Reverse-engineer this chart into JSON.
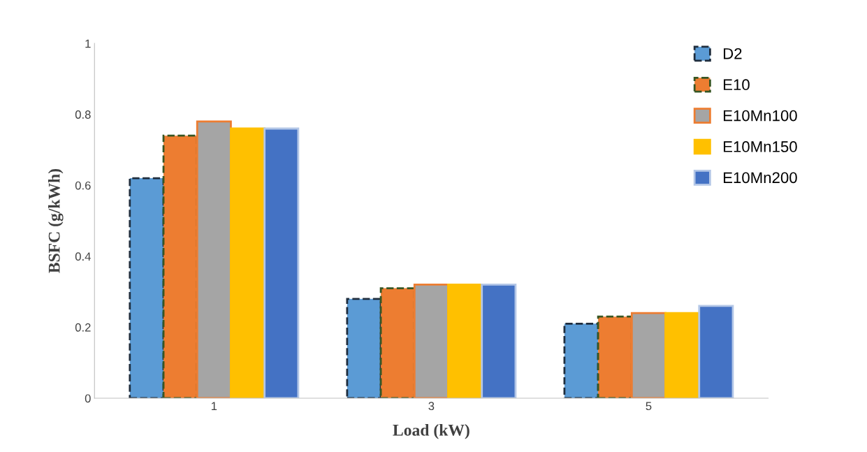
{
  "chart_data": {
    "type": "bar",
    "xlabel": "Load (kW)",
    "ylabel": "BSFC (g/kWh)",
    "categories": [
      "1",
      "3",
      "5"
    ],
    "series": [
      {
        "name": "D2",
        "color": "#5b9bd5",
        "values": [
          0.62,
          0.28,
          0.21
        ]
      },
      {
        "name": "E10",
        "color": "#ed7d31",
        "values": [
          0.74,
          0.31,
          0.23
        ]
      },
      {
        "name": "E10Mn100",
        "color": "#a5a5a5",
        "values": [
          0.78,
          0.32,
          0.24
        ]
      },
      {
        "name": "E10Mn150",
        "color": "#ffc000",
        "values": [
          0.76,
          0.32,
          0.24
        ]
      },
      {
        "name": "E10Mn200",
        "color": "#4472c4",
        "values": [
          0.76,
          0.32,
          0.26
        ]
      }
    ],
    "ylim": [
      0,
      1
    ],
    "yticks": [
      0,
      0.2,
      0.4,
      0.6,
      0.8,
      1
    ],
    "grid": false,
    "legend": "top right"
  }
}
